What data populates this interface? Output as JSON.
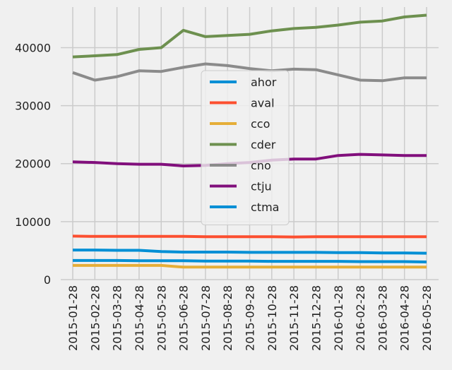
{
  "chart_data": {
    "type": "line",
    "title": "",
    "xlabel": "",
    "ylabel": "",
    "ylim": [
      0,
      47000
    ],
    "grid": true,
    "legend_position": "center",
    "x": [
      "2015-01-28",
      "2015-02-28",
      "2015-03-28",
      "2015-04-28",
      "2015-05-28",
      "2015-06-28",
      "2015-07-28",
      "2015-08-28",
      "2015-09-28",
      "2015-10-28",
      "2015-11-28",
      "2015-12-28",
      "2016-01-28",
      "2016-02-28",
      "2016-03-28",
      "2016-04-28",
      "2016-05-28"
    ],
    "yticks": [
      {
        "value": 0,
        "label": "0"
      },
      {
        "value": 10000,
        "label": "10000"
      },
      {
        "value": 20000,
        "label": "20000"
      },
      {
        "value": 30000,
        "label": "30000"
      },
      {
        "value": 40000,
        "label": "40000"
      }
    ],
    "series": [
      {
        "name": "ahor",
        "color": "#008fd5",
        "values": [
          5100,
          5100,
          5050,
          5050,
          4850,
          4750,
          4750,
          4750,
          4700,
          4700,
          4700,
          4700,
          4650,
          4650,
          4600,
          4600,
          4550
        ]
      },
      {
        "name": "aval",
        "color": "#fc4f30",
        "values": [
          7500,
          7450,
          7450,
          7450,
          7450,
          7450,
          7400,
          7400,
          7400,
          7400,
          7350,
          7400,
          7400,
          7400,
          7400,
          7400,
          7400
        ]
      },
      {
        "name": "cco",
        "color": "#e5ae38",
        "values": [
          2450,
          2450,
          2450,
          2450,
          2450,
          2150,
          2150,
          2150,
          2150,
          2150,
          2150,
          2150,
          2150,
          2150,
          2150,
          2150,
          2150
        ]
      },
      {
        "name": "cder",
        "color": "#6d904f",
        "values": [
          38400,
          38600,
          38800,
          39700,
          40000,
          43000,
          41900,
          42100,
          42300,
          42900,
          43300,
          43500,
          43900,
          44400,
          44600,
          45300,
          45600
        ]
      },
      {
        "name": "cno",
        "color": "#8b8b8b",
        "values": [
          35700,
          34400,
          35000,
          36000,
          35900,
          36600,
          37200,
          36900,
          36400,
          36000,
          36300,
          36200,
          35300,
          34400,
          34300,
          34800,
          34800
        ]
      },
      {
        "name": "ctju",
        "color": "#810f7c",
        "values": [
          20300,
          20200,
          20000,
          19900,
          19900,
          19600,
          19700,
          20000,
          20200,
          20600,
          20800,
          20800,
          21400,
          21600,
          21500,
          21400,
          21400
        ]
      },
      {
        "name": "ctma",
        "color": "#008fd5",
        "values": [
          3300,
          3300,
          3300,
          3250,
          3250,
          3250,
          3200,
          3200,
          3200,
          3150,
          3150,
          3150,
          3150,
          3100,
          3100,
          3100,
          3050
        ]
      }
    ]
  }
}
